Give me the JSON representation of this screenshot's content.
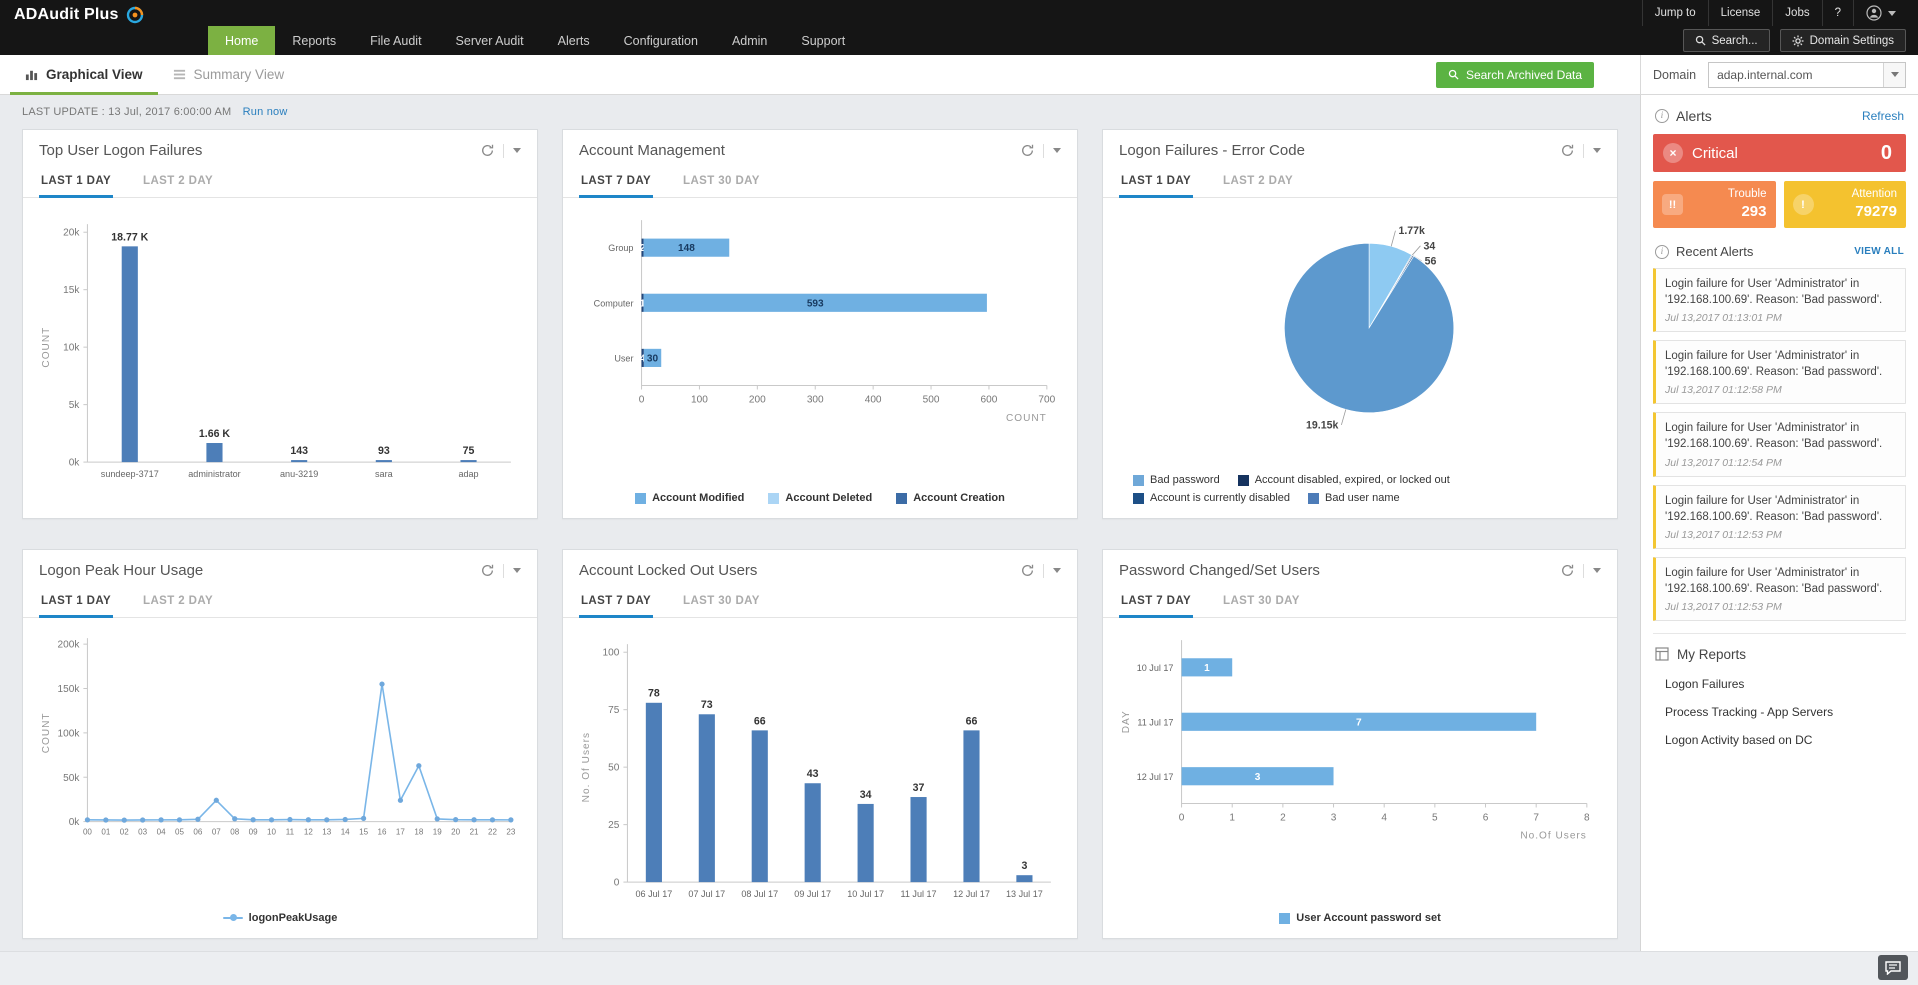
{
  "topbar": {
    "brand": "ADAudit Plus",
    "nav": [
      {
        "label": "Home",
        "active": true
      },
      {
        "label": "Reports",
        "active": false
      },
      {
        "label": "File Audit",
        "active": false
      },
      {
        "label": "Server Audit",
        "active": false
      },
      {
        "label": "Alerts",
        "active": false
      },
      {
        "label": "Configuration",
        "active": false
      },
      {
        "label": "Admin",
        "active": false
      },
      {
        "label": "Support",
        "active": false
      }
    ],
    "quick_links": [
      {
        "label": "Jump to"
      },
      {
        "label": "License"
      },
      {
        "label": "Jobs"
      }
    ],
    "help_label": "?",
    "search_button": "Search...",
    "domain_settings_button": "Domain Settings"
  },
  "toolbar": {
    "view_tabs": [
      {
        "label": "Graphical View",
        "active": true
      },
      {
        "label": "Summary View",
        "active": false
      }
    ],
    "search_archived_button": "Search Archived Data",
    "domain_label": "Domain",
    "domain_value": "adap.internal.com"
  },
  "statusbar": {
    "last_update": "LAST UPDATE : 13 Jul, 2017 6:00:00 AM",
    "run_now": "Run now"
  },
  "cards": [
    {
      "title": "Top User Logon Failures",
      "tabs": [
        "LAST 1 DAY",
        "LAST 2 DAY"
      ],
      "active_tab": 0,
      "chart": 0
    },
    {
      "title": "Account Management",
      "tabs": [
        "LAST 7 DAY",
        "LAST 30 DAY"
      ],
      "active_tab": 0,
      "chart": 1
    },
    {
      "title": "Logon Failures - Error Code",
      "tabs": [
        "LAST 1 DAY",
        "LAST 2 DAY"
      ],
      "active_tab": 0,
      "chart": 2
    },
    {
      "title": "Logon Peak Hour Usage",
      "tabs": [
        "LAST 1 DAY",
        "LAST 2 DAY"
      ],
      "active_tab": 0,
      "chart": 3
    },
    {
      "title": "Account Locked Out Users",
      "tabs": [
        "LAST 7 DAY",
        "LAST 30 DAY"
      ],
      "active_tab": 0,
      "chart": 4
    },
    {
      "title": "Password Changed/Set Users",
      "tabs": [
        "LAST 7 DAY",
        "LAST 30 DAY"
      ],
      "active_tab": 0,
      "chart": 5
    }
  ],
  "chart_data": [
    {
      "type": "bar",
      "title": "Top User Logon Failures",
      "categories": [
        "sundeep-3717",
        "administrator",
        "anu-3219",
        "sara",
        "adap"
      ],
      "values": [
        18770,
        1660,
        143,
        93,
        75
      ],
      "labels": [
        "18.77 K",
        "1.66 K",
        "143",
        "93",
        "75"
      ],
      "ylabel": "COUNT",
      "yticks": [
        "0k",
        "5k",
        "10k",
        "15k",
        "20k"
      ],
      "ylim": [
        0,
        20000
      ],
      "bar_color": "#4d7eb8"
    },
    {
      "type": "hbar",
      "title": "Account Management",
      "categories": [
        "Group",
        "Computer",
        "User"
      ],
      "series": [
        {
          "name": "Account Creation",
          "color": "#24487c",
          "label_color": "#ffffff",
          "values": [
            2,
            1,
            4
          ]
        },
        {
          "name": "Account Modified",
          "color": "#6fb0e2",
          "label_color": "#17395f",
          "values": [
            148,
            593,
            30
          ]
        },
        {
          "name": "Account Deleted",
          "color": "#abd5f5",
          "label_color": "#17395f",
          "values": [
            0,
            0,
            0
          ]
        }
      ],
      "xlabel": "COUNT",
      "xticks": [
        0,
        100,
        200,
        300,
        400,
        500,
        600,
        700
      ],
      "xlim": [
        0,
        700
      ],
      "legend": [
        {
          "label": "Account Modified",
          "color": "#6fb0e2"
        },
        {
          "label": "Account Deleted",
          "color": "#abd5f5"
        },
        {
          "label": "Account Creation",
          "color": "#3c6ca6"
        }
      ]
    },
    {
      "type": "pie",
      "title": "Logon Failures - Error Code",
      "slices": [
        {
          "label": "1.77k",
          "value": 1770,
          "color": "#8ecaf2"
        },
        {
          "label": "34",
          "value": 34,
          "color": "#16335f"
        },
        {
          "label": "56",
          "value": 56,
          "color": "#3f69a0"
        },
        {
          "label": "19.15k",
          "value": 19150,
          "color": "#5d99ce"
        }
      ],
      "legend": [
        {
          "label": "Bad password",
          "color": "#6fa8d8"
        },
        {
          "label": "Account disabled, expired, or locked out",
          "color": "#16335f"
        },
        {
          "label": "Account is currently disabled",
          "color": "#1d4f86"
        },
        {
          "label": "Bad user name",
          "color": "#4d7cb8"
        }
      ]
    },
    {
      "type": "line",
      "title": "Logon Peak Hour Usage",
      "x": [
        "00",
        "01",
        "02",
        "03",
        "04",
        "05",
        "06",
        "07",
        "08",
        "09",
        "10",
        "11",
        "12",
        "13",
        "14",
        "15",
        "16",
        "17",
        "18",
        "19",
        "20",
        "21",
        "22",
        "23"
      ],
      "values": [
        2000,
        1800,
        1700,
        1800,
        1900,
        2000,
        2600,
        24000,
        3200,
        2100,
        2000,
        2300,
        2100,
        2000,
        2400,
        3600,
        155000,
        24000,
        63000,
        3000,
        2200,
        2100,
        2000,
        1900
      ],
      "ylabel": "COUNT",
      "yticks": [
        "0k",
        "50k",
        "100k",
        "150k",
        "200k"
      ],
      "ylim": [
        0,
        200000
      ],
      "line_color": "#7ab6e8",
      "legend": [
        {
          "label": "logonPeakUsage",
          "color": "#7ab6e8",
          "marker": "line"
        }
      ]
    },
    {
      "type": "bar",
      "title": "Account Locked Out Users",
      "categories": [
        "06 Jul 17",
        "07 Jul 17",
        "08 Jul 17",
        "09 Jul 17",
        "10 Jul 17",
        "11 Jul 17",
        "12 Jul 17",
        "13 Jul 17"
      ],
      "values": [
        78,
        73,
        66,
        43,
        34,
        37,
        66,
        3
      ],
      "labels": [
        "78",
        "73",
        "66",
        "43",
        "34",
        "37",
        "66",
        "3"
      ],
      "ylabel": "No. Of Users",
      "yticks": [
        "0",
        "25",
        "50",
        "75",
        "100"
      ],
      "ylim": [
        0,
        100
      ],
      "bar_color": "#4d7eb8"
    },
    {
      "type": "hbar",
      "title": "Password Changed/Set Users",
      "categories": [
        "10 Jul 17",
        "11 Jul 17",
        "12 Jul 17"
      ],
      "series": [
        {
          "name": "User Account password set",
          "color": "#6fb0e2",
          "label_color": "#ffffff",
          "values": [
            1,
            7,
            3
          ]
        }
      ],
      "xlabel": "No.Of Users",
      "xticks": [
        0,
        1,
        2,
        3,
        4,
        5,
        6,
        7,
        8
      ],
      "xlim": [
        0,
        8
      ],
      "ylabel": "DAY",
      "legend": [
        {
          "label": "User Account password set",
          "color": "#6fb0e2"
        }
      ]
    }
  ],
  "sidebar": {
    "alerts_title": "Alerts",
    "refresh_link": "Refresh",
    "severities": [
      {
        "label": "Critical",
        "count": "0",
        "color": "#e2574c"
      },
      {
        "label": "Trouble",
        "count": "293",
        "color": "#f58a50"
      },
      {
        "label": "Attention",
        "count": "79279",
        "color": "#f4c22f"
      }
    ],
    "recent_title": "Recent Alerts",
    "view_all": "VIEW ALL",
    "recent_alerts": [
      {
        "message": "Login failure for User 'Administrator' in '192.168.100.69'. Reason: 'Bad password'.",
        "time": "Jul 13,2017 01:13:01 PM"
      },
      {
        "message": "Login failure for User 'Administrator' in '192.168.100.69'. Reason: 'Bad password'.",
        "time": "Jul 13,2017 01:12:58 PM"
      },
      {
        "message": "Login failure for User 'Administrator' in '192.168.100.69'. Reason: 'Bad password'.",
        "time": "Jul 13,2017 01:12:54 PM"
      },
      {
        "message": "Login failure for User 'Administrator' in '192.168.100.69'. Reason: 'Bad password'.",
        "time": "Jul 13,2017 01:12:53 PM"
      },
      {
        "message": "Login failure for User 'Administrator' in '192.168.100.69'. Reason: 'Bad password'.",
        "time": "Jul 13,2017 01:12:53 PM"
      }
    ],
    "my_reports_title": "My Reports",
    "my_reports": [
      {
        "label": "Logon Failures"
      },
      {
        "label": "Process Tracking - App Servers"
      },
      {
        "label": "Logon Activity based on DC"
      }
    ]
  }
}
